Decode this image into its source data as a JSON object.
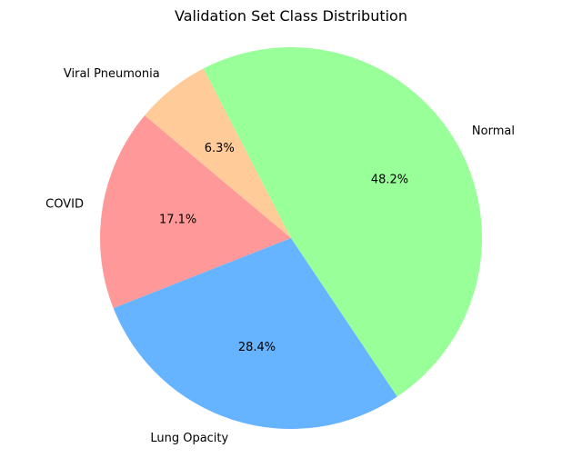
{
  "chart_data": {
    "type": "pie",
    "title": "Validation Set Class Distribution",
    "start_angle_deg": 140,
    "direction": "counterclockwise",
    "slices": [
      {
        "label": "COVID",
        "value": 17.1,
        "pct_label": "17.1%",
        "color": "#ff9999"
      },
      {
        "label": "Lung Opacity",
        "value": 28.4,
        "pct_label": "28.4%",
        "color": "#66b3ff"
      },
      {
        "label": "Normal",
        "value": 48.2,
        "pct_label": "48.2%",
        "color": "#99ff99"
      },
      {
        "label": "Viral Pneumonia",
        "value": 6.3,
        "pct_label": "6.3%",
        "color": "#ffcc99"
      }
    ]
  }
}
